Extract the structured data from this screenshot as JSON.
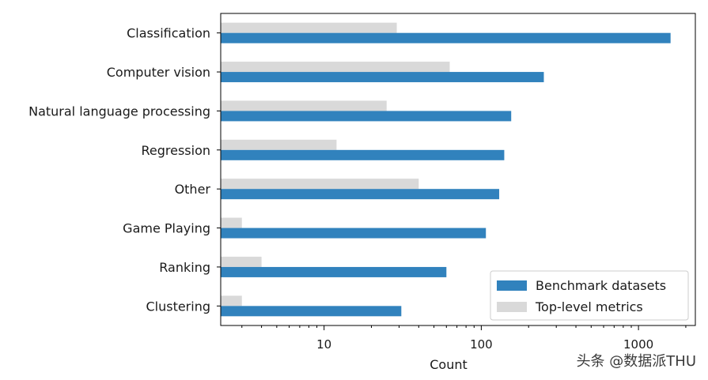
{
  "chart_data": {
    "type": "bar",
    "orientation": "horizontal",
    "categories": [
      "Classification",
      "Computer vision",
      "Natural language processing",
      "Regression",
      "Other",
      "Game Playing",
      "Ranking",
      "Clustering"
    ],
    "series": [
      {
        "name": "Benchmark datasets",
        "color": "#3182bd",
        "values": [
          1600,
          250,
          155,
          140,
          130,
          107,
          60,
          31
        ]
      },
      {
        "name": "Top-level metrics",
        "color": "#d9d9d9",
        "values": [
          29,
          63,
          25,
          12,
          40,
          3,
          4,
          3
        ]
      }
    ],
    "xscale": "log",
    "xlim": [
      2.2,
      2300
    ],
    "xticks": [
      10,
      100,
      1000
    ],
    "xtick_labels": [
      "10",
      "100",
      "1000"
    ],
    "xlabel": "Count",
    "ylabel": "",
    "legend_position": "bottom-right",
    "grid": false
  },
  "watermark": "头条 @数据派THU"
}
